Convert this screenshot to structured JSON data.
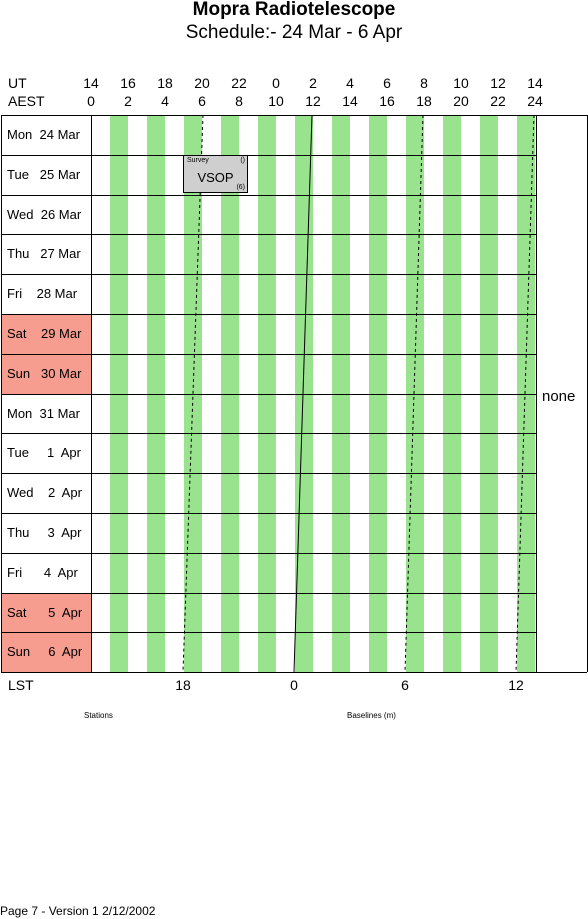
{
  "title": "Mopra Radiotelescope",
  "subtitle": "Schedule:- 24 Mar - 6  Apr",
  "axis": {
    "ut_label": "UT",
    "aest_label": "AEST",
    "lst_label": "LST",
    "ut_ticks": [
      "14",
      "16",
      "18",
      "20",
      "22",
      "0",
      "2",
      "4",
      "6",
      "8",
      "10",
      "12",
      "14"
    ],
    "aest_ticks": [
      "0",
      "2",
      "4",
      "6",
      "8",
      "10",
      "12",
      "14",
      "16",
      "18",
      "20",
      "22",
      "24"
    ],
    "lst_ticks": [
      "18",
      "0",
      "6",
      "12"
    ]
  },
  "rows": [
    {
      "label": "Mon  24 Mar",
      "weekend": false
    },
    {
      "label": "Tue   25 Mar",
      "weekend": false
    },
    {
      "label": "Wed  26 Mar",
      "weekend": false
    },
    {
      "label": "Thu   27 Mar",
      "weekend": false
    },
    {
      "label": "Fri    28 Mar",
      "weekend": false
    },
    {
      "label": "Sat    29 Mar",
      "weekend": true
    },
    {
      "label": "Sun   30 Mar",
      "weekend": true
    },
    {
      "label": "Mon  31 Mar",
      "weekend": false
    },
    {
      "label": "Tue     1  Apr",
      "weekend": false
    },
    {
      "label": "Wed    2  Apr",
      "weekend": false
    },
    {
      "label": "Thu     3  Apr",
      "weekend": false
    },
    {
      "label": "Fri      4  Apr",
      "weekend": false
    },
    {
      "label": "Sat      5  Apr",
      "weekend": true
    },
    {
      "label": "Sun     6  Apr",
      "weekend": true
    }
  ],
  "blocks": [
    {
      "row": 1,
      "name": "VSOP",
      "top_left": "Survey",
      "top_right": "()",
      "bottom_right": "(6)"
    }
  ],
  "side_note": "none",
  "bottom_labels": {
    "left": "Stations",
    "right": "Baselines (m)"
  },
  "footer": "Page 7 - Version 1  2/12/2002",
  "colors": {
    "weekend": "#f69d8f",
    "night_stripe": "#99e28e",
    "block": "#cfcfcf"
  }
}
